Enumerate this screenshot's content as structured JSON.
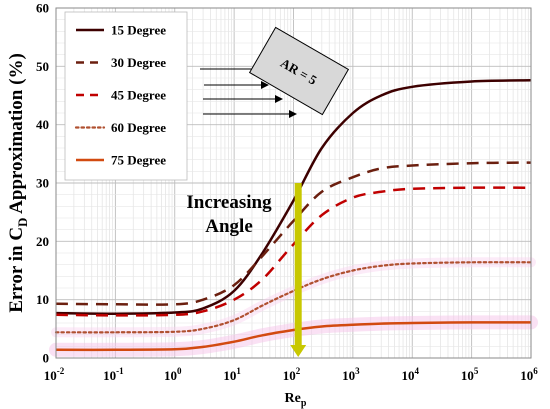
{
  "chart_data": {
    "type": "line",
    "x_scale": "log",
    "xlim": [
      0.01,
      1000000
    ],
    "ylim": [
      0,
      60
    ],
    "yticks": [
      0,
      10,
      20,
      30,
      40,
      50,
      60
    ],
    "x_ticks": [
      {
        "value": 0.01,
        "base": "10",
        "exp": "-2"
      },
      {
        "value": 0.1,
        "base": "10",
        "exp": "-1"
      },
      {
        "value": 1,
        "base": "10",
        "exp": "0"
      },
      {
        "value": 10,
        "base": "10",
        "exp": "1"
      },
      {
        "value": 100,
        "base": "10",
        "exp": "2"
      },
      {
        "value": 1000,
        "base": "10",
        "exp": "3"
      },
      {
        "value": 10000,
        "base": "10",
        "exp": "4"
      },
      {
        "value": 100000,
        "base": "10",
        "exp": "5"
      },
      {
        "value": 1000000,
        "base": "10",
        "exp": "6"
      }
    ],
    "xlabel": {
      "main": "Re",
      "sub": "p"
    },
    "ylabel": {
      "prefix": "Error in C",
      "sub": "D",
      "suffix": " Approximation (%)"
    },
    "grid": true,
    "legend_position": "top-left",
    "series": [
      {
        "name": "15 Degree",
        "color": "#3d0000",
        "style": "solid",
        "x": [
          0.01,
          0.1,
          1,
          3,
          10,
          30,
          100,
          300,
          1000,
          3000,
          10000,
          100000,
          1000000
        ],
        "y": [
          7.7,
          7.6,
          7.8,
          8.5,
          11.5,
          18.0,
          27.0,
          36.0,
          42.0,
          45.0,
          46.5,
          47.4,
          47.6
        ]
      },
      {
        "name": "30 Degree",
        "color": "#6b1f0f",
        "style": "dashed",
        "x": [
          0.01,
          0.1,
          1,
          3,
          10,
          30,
          100,
          300,
          1000,
          3000,
          10000,
          100000,
          1000000
        ],
        "y": [
          9.3,
          9.2,
          9.2,
          10.0,
          12.5,
          17.5,
          23.5,
          28.5,
          31.0,
          32.5,
          33.0,
          33.4,
          33.5
        ]
      },
      {
        "name": "45 Degree",
        "color": "#c00000",
        "style": "dashed",
        "x": [
          0.01,
          0.1,
          1,
          3,
          10,
          30,
          100,
          300,
          1000,
          3000,
          10000,
          100000,
          1000000
        ],
        "y": [
          7.4,
          7.3,
          7.4,
          8.0,
          10.0,
          13.5,
          19.5,
          24.5,
          27.5,
          28.5,
          29.0,
          29.2,
          29.2
        ]
      },
      {
        "name": "60 Degree",
        "color": "#b05030",
        "style": "dotted",
        "x": [
          0.01,
          0.1,
          1,
          3,
          10,
          30,
          100,
          300,
          1000,
          3000,
          10000,
          100000,
          1000000
        ],
        "y": [
          4.4,
          4.4,
          4.5,
          5.0,
          6.5,
          9.0,
          11.5,
          13.5,
          15.0,
          15.8,
          16.2,
          16.4,
          16.4
        ]
      },
      {
        "name": "75 Degree",
        "color": "#d24a10",
        "style": "solid",
        "x": [
          0.01,
          0.1,
          1,
          3,
          10,
          30,
          100,
          300,
          1000,
          3000,
          10000,
          100000,
          1000000
        ],
        "y": [
          1.4,
          1.4,
          1.5,
          1.9,
          2.8,
          3.9,
          4.8,
          5.4,
          5.7,
          5.9,
          6.0,
          6.1,
          6.1
        ]
      }
    ],
    "annotations": {
      "increasing_angle": [
        "Increasing",
        "Angle"
      ],
      "arrow": {
        "x": 120,
        "y_start": 30,
        "y_end": 0,
        "color": "#c8c800"
      },
      "ar_label": "AR = 5"
    }
  }
}
